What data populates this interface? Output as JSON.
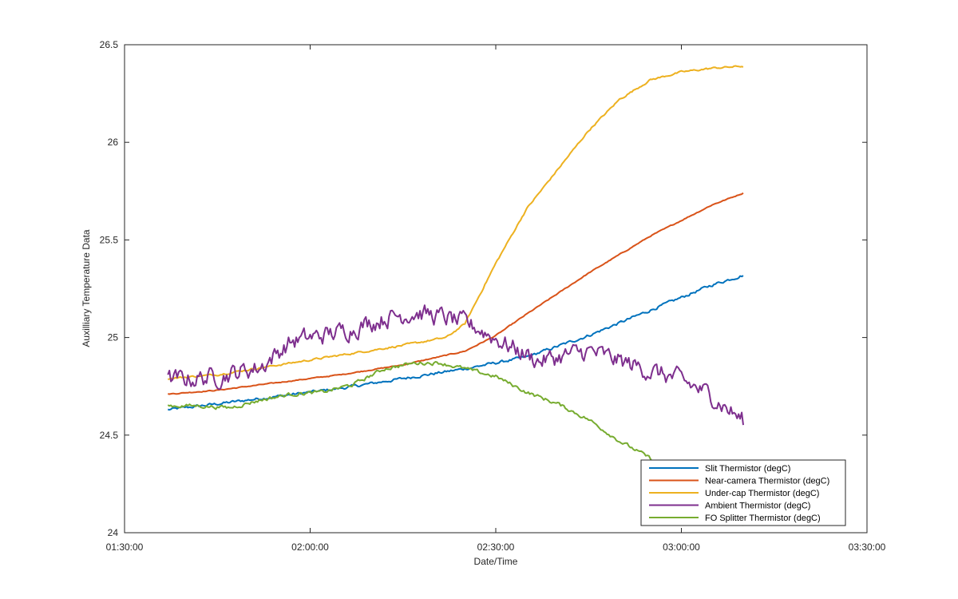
{
  "chart_data": {
    "type": "line",
    "title": "",
    "xlabel": "Date/Time",
    "ylabel": "Auxilliary Temperature Data",
    "x_unit": "clock time (HH:MM:SS)",
    "xlim": [
      "01:30:00",
      "03:30:00"
    ],
    "ylim": [
      24,
      26.5
    ],
    "x_ticks": [
      "01:30:00",
      "02:00:00",
      "02:30:00",
      "03:00:00",
      "03:30:00"
    ],
    "y_ticks": [
      "24",
      "24.5",
      "25",
      "25.5",
      "26",
      "26.5"
    ],
    "grid": false,
    "legend_position": "bottom-right",
    "series": [
      {
        "name": "Slit Thermistor (degC)",
        "color": "#0072BD",
        "x": [
          "01:37:00",
          "01:45:00",
          "01:55:00",
          "02:05:00",
          "02:15:00",
          "02:25:00",
          "02:35:00",
          "02:45:00",
          "02:55:00",
          "03:05:00",
          "03:10:00"
        ],
        "y": [
          24.63,
          24.66,
          24.7,
          24.74,
          24.79,
          24.84,
          24.9,
          25.01,
          25.14,
          25.27,
          25.32
        ],
        "noise": 0.006
      },
      {
        "name": "Near-camera Thermistor (degC)",
        "color": "#D95319",
        "x": [
          "01:37:00",
          "01:45:00",
          "01:55:00",
          "02:05:00",
          "02:15:00",
          "02:25:00",
          "02:30:00",
          "02:35:00",
          "02:45:00",
          "02:55:00",
          "03:05:00",
          "03:10:00"
        ],
        "y": [
          24.71,
          24.73,
          24.77,
          24.81,
          24.86,
          24.93,
          25.01,
          25.12,
          25.33,
          25.52,
          25.68,
          25.74
        ],
        "noise": 0.002
      },
      {
        "name": "Under-cap Thermistor (degC)",
        "color": "#EDB120",
        "x": [
          "01:37:00",
          "01:45:00",
          "01:55:00",
          "02:05:00",
          "02:15:00",
          "02:22:00",
          "02:25:00",
          "02:30:00",
          "02:35:00",
          "02:40:00",
          "02:45:00",
          "02:50:00",
          "02:55:00",
          "03:00:00",
          "03:05:00",
          "03:10:00"
        ],
        "y": [
          24.79,
          24.81,
          24.86,
          24.91,
          24.96,
          25.0,
          25.07,
          25.38,
          25.66,
          25.86,
          26.06,
          26.22,
          26.32,
          26.36,
          26.38,
          26.39
        ],
        "noise": 0.004
      },
      {
        "name": "Ambient Thermistor (degC)",
        "color": "#7E2F8E",
        "x": [
          "01:37:00",
          "01:45:00",
          "01:52:00",
          "01:57:00",
          "02:05:00",
          "02:12:00",
          "02:17:00",
          "02:22:00",
          "02:27:00",
          "02:32:00",
          "02:37:00",
          "02:45:00",
          "02:52:00",
          "03:00:00",
          "03:05:00",
          "03:10:00"
        ],
        "y": [
          24.78,
          24.8,
          24.85,
          24.98,
          25.03,
          25.1,
          25.13,
          25.1,
          25.05,
          24.96,
          24.88,
          24.93,
          24.86,
          24.78,
          24.7,
          24.57
        ],
        "noise": 0.04
      },
      {
        "name": "FO Splitter Thermistor (degC)",
        "color": "#77AC30",
        "x": [
          "01:37:00",
          "01:42:00",
          "01:47:00",
          "01:52:00",
          "01:57:00",
          "02:02:00",
          "02:07:00",
          "02:12:00",
          "02:17:00",
          "02:21:00",
          "02:25:00",
          "02:30:00",
          "02:35:00",
          "02:40:00",
          "02:45:00",
          "02:50:00",
          "02:55:00",
          "03:00:00",
          "03:05:00",
          "03:10:00"
        ],
        "y": [
          24.65,
          24.65,
          24.64,
          24.68,
          24.71,
          24.72,
          24.76,
          24.84,
          24.87,
          24.87,
          24.84,
          24.8,
          24.72,
          24.66,
          24.58,
          24.47,
          24.38,
          24.28,
          24.15,
          24.04
        ],
        "noise": 0.008
      }
    ]
  }
}
